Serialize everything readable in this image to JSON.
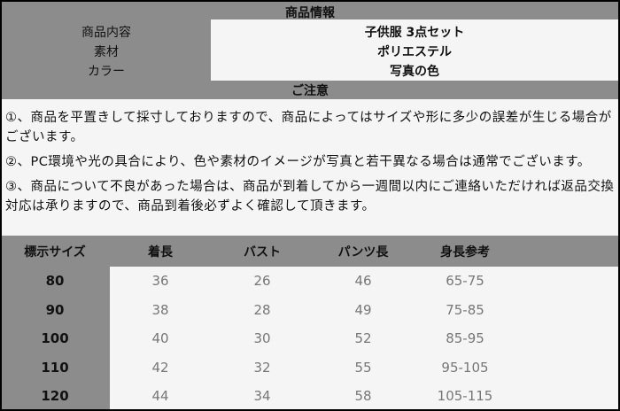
{
  "product_info": {
    "title": "商品情報",
    "rows": [
      {
        "label": "商品内容",
        "value": "子供服 3点セット"
      },
      {
        "label": "素材",
        "value": "ポリエステル"
      },
      {
        "label": "カラー",
        "value": "写真の色"
      }
    ]
  },
  "notice": {
    "title": "ご注意",
    "items": [
      "①、商品を平置きして採寸しておりますので、商品によってはサイズや形に多少の誤差が生じる場合がございます。",
      "②、PC環境や光の具合により、色や素材のイメージが写真と若干異なる場合は通常でございます。",
      "③、商品について不良があった場合は、商品が到着してから一週間以内にご連絡いただければ返品交換対応は承りますので、商品到着後必ずよく確認して頂きます。"
    ]
  },
  "size_table": {
    "headers": [
      "標示サイズ",
      "着長",
      "バスト",
      "パンツ長",
      "身長参考"
    ],
    "rows": [
      [
        "80",
        "36",
        "26",
        "46",
        "65-75"
      ],
      [
        "90",
        "38",
        "28",
        "49",
        "75-85"
      ],
      [
        "100",
        "40",
        "30",
        "52",
        "85-95"
      ],
      [
        "110",
        "42",
        "32",
        "55",
        "95-105"
      ],
      [
        "120",
        "44",
        "34",
        "58",
        "105-115"
      ]
    ]
  }
}
